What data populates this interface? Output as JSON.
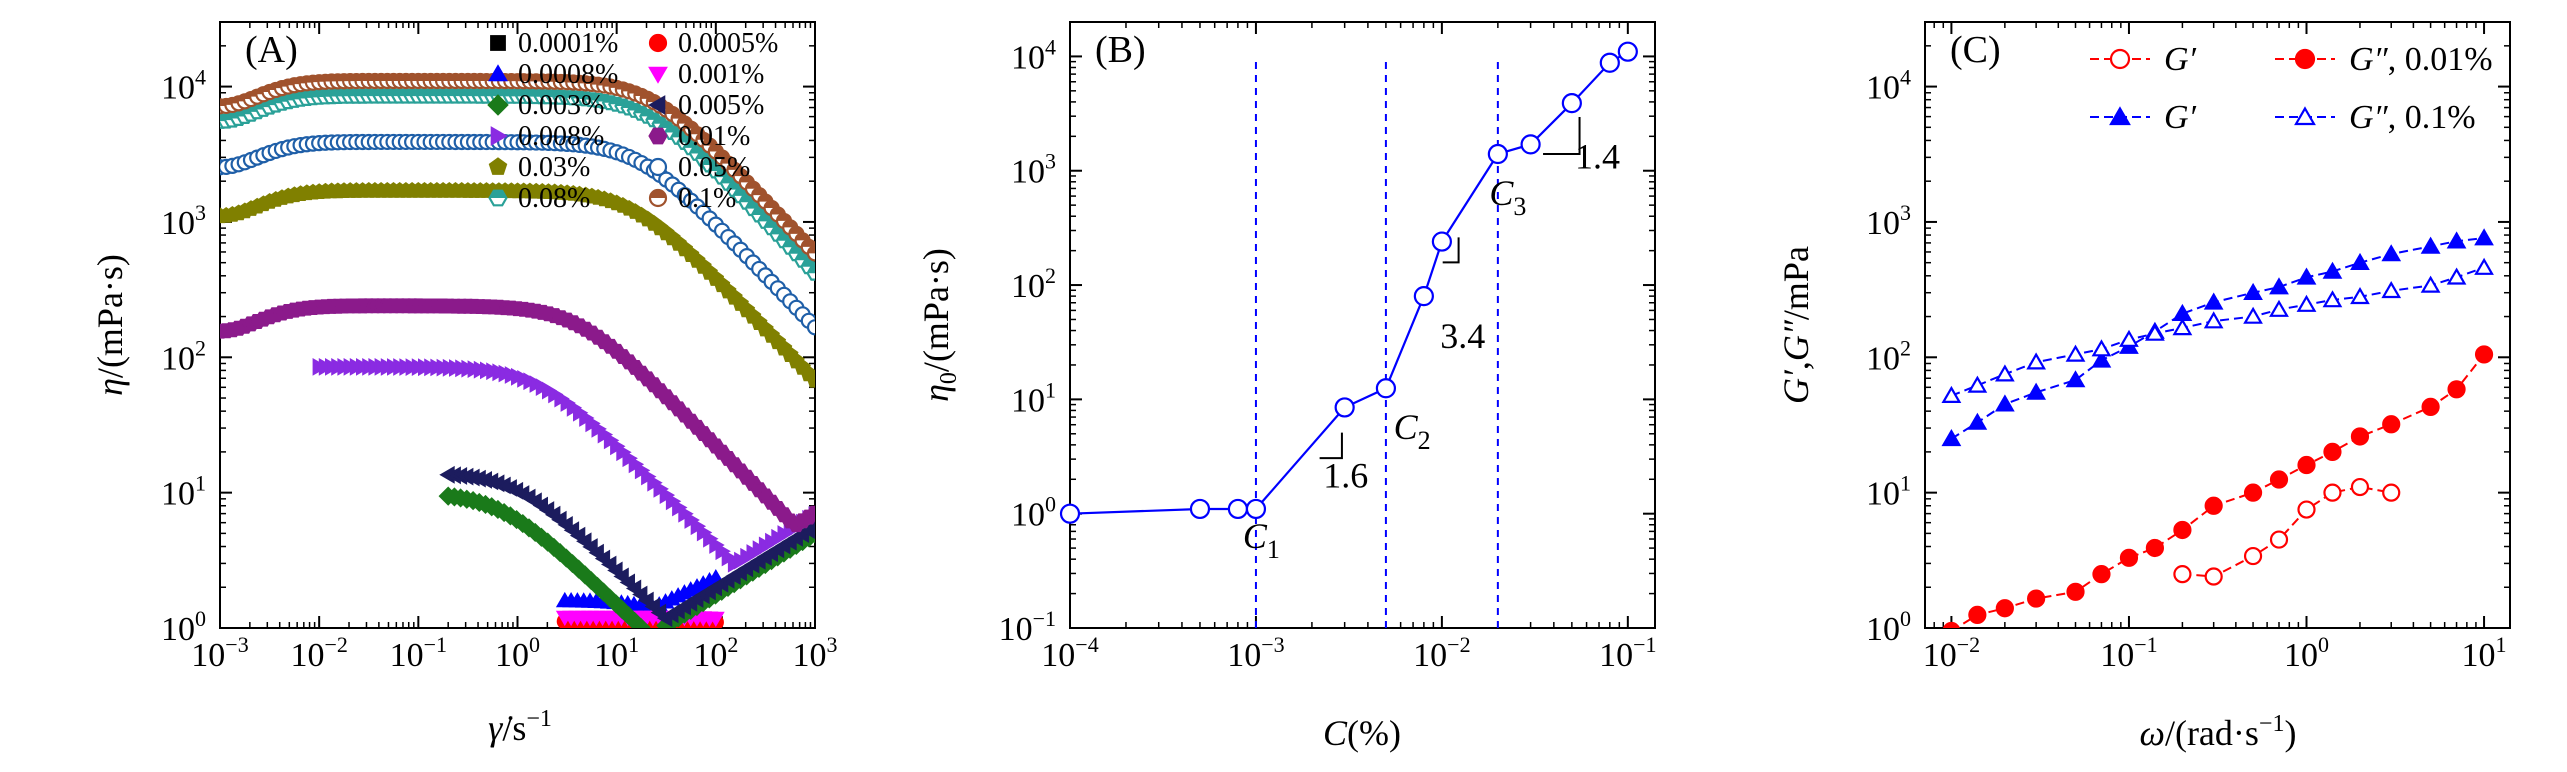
{
  "colors": {
    "black": "#000000",
    "red": "#ff0000",
    "blue": "#0000ff",
    "magenta": "#ff00ff",
    "green": "#1a7a1a",
    "navy": "#1c1c5e",
    "violet": "#8a2be2",
    "purple": "#8b1a8b",
    "olive": "#808000",
    "steelblue": "#1f5fa8",
    "teal": "#2aa198",
    "brown": "#a0522d",
    "line_blue": "#0000ff",
    "dash_blue": "#0000ff"
  },
  "chart_data": [
    {
      "panel": "A",
      "label": "(A)",
      "type": "scatter",
      "xscale": "log",
      "yscale": "log",
      "xlim": [
        0.001,
        1000
      ],
      "ylim": [
        1,
        30000
      ],
      "xlabel": "γ̇/s⁻¹",
      "ylabel": "η/(mPa·s)",
      "xticks": [
        {
          "base": "10",
          "exp": "−3"
        },
        {
          "base": "10",
          "exp": "−2"
        },
        {
          "base": "10",
          "exp": "−1"
        },
        {
          "base": "10",
          "exp": "0"
        },
        {
          "base": "10",
          "exp": "1"
        },
        {
          "base": "10",
          "exp": "2"
        },
        {
          "base": "10",
          "exp": "3"
        }
      ],
      "yticks": [
        {
          "base": "10",
          "exp": "0"
        },
        {
          "base": "10",
          "exp": "1"
        },
        {
          "base": "10",
          "exp": "2"
        },
        {
          "base": "10",
          "exp": "3"
        },
        {
          "base": "10",
          "exp": "4"
        }
      ],
      "legend_position": "top-right",
      "series": [
        {
          "name": "0.0001%",
          "marker": "square",
          "color": "black",
          "filled": true,
          "curve": {
            "eta0": 1.1,
            "lam": 0.001,
            "n": 1.0,
            "x0": 10,
            "x1": 100,
            "up": null
          }
        },
        {
          "name": "0.0005%",
          "marker": "circle",
          "color": "red",
          "filled": true,
          "curve": {
            "eta0": 1.12,
            "lam": 0.001,
            "n": 1.0,
            "x0": 3,
            "x1": 100,
            "up": null
          }
        },
        {
          "name": "0.0008%",
          "marker": "triangle-up",
          "color": "blue",
          "filled": true,
          "curve": {
            "eta0": 1.6,
            "lam": 0.02,
            "n": 0.85,
            "x0": 3,
            "x1": 100,
            "up": [
              120,
              2.5,
              0.35
            ]
          }
        },
        {
          "name": "0.001%",
          "marker": "triangle-down",
          "color": "magenta",
          "filled": true,
          "curve": {
            "eta0": 1.2,
            "lam": 0.001,
            "n": 1.0,
            "x0": 3,
            "x1": 100,
            "up": null
          }
        },
        {
          "name": "0.003%",
          "marker": "diamond",
          "color": "green",
          "filled": true,
          "curve": {
            "eta0": 10,
            "lam": 1.5,
            "n": 0.7,
            "x0": 0.2,
            "x1": 1000,
            "up": [
              200,
              2.4,
              0.45
            ]
          }
        },
        {
          "name": "0.005%",
          "marker": "triangle-left",
          "color": "navy",
          "filled": true,
          "curve": {
            "eta0": 14,
            "lam": 1.0,
            "n": 0.72,
            "x0": 0.2,
            "x1": 1000,
            "up": [
              180,
              2.6,
              0.45
            ]
          }
        },
        {
          "name": "0.008%",
          "marker": "triangle-right",
          "color": "violet",
          "filled": true,
          "curve": {
            "eta0": 85,
            "lam": 0.6,
            "n": 0.74,
            "x0": 0.01,
            "x1": 1000,
            "up": [
              160,
              3.0,
              0.45
            ]
          }
        },
        {
          "name": "0.01%",
          "marker": "hexagon",
          "color": "purple",
          "filled": true,
          "curve": {
            "eta0": 240,
            "lam": 0.25,
            "n": 0.74,
            "x0": 0.001,
            "x1": 1000,
            "up": [
              150,
              3.0,
              0.45
            ]
          }
        },
        {
          "name": "0.03%",
          "marker": "pentagon",
          "color": "olive",
          "filled": true,
          "curve": {
            "eta0": 1700,
            "lam": 0.07,
            "n": 0.76,
            "x0": 0.001,
            "x1": 1000,
            "up": [
              250,
              6.0,
              0.5
            ]
          }
        },
        {
          "name": "0.05%",
          "marker": "circle",
          "color": "steelblue",
          "filled": false,
          "curve": {
            "eta0": 3900,
            "lam": 0.06,
            "n": 0.77,
            "x0": 0.001,
            "x1": 1000,
            "up": [
              300,
              8.0,
              0.5
            ]
          }
        },
        {
          "name": "0.08%",
          "marker": "hexagon-half",
          "color": "teal",
          "filled": false,
          "curve": {
            "eta0": 8500,
            "lam": 0.05,
            "n": 0.77,
            "x0": 0.001,
            "x1": 1000,
            "up": [
              350,
              10.0,
              0.5
            ]
          }
        },
        {
          "name": "0.1%",
          "marker": "circle-half",
          "color": "brown",
          "filled": false,
          "curve": {
            "eta0": 11000,
            "lam": 0.045,
            "n": 0.77,
            "x0": 0.001,
            "x1": 1000,
            "up": [
              380,
              11.0,
              0.5
            ]
          }
        }
      ]
    },
    {
      "panel": "B",
      "label": "(B)",
      "type": "line",
      "xscale": "log",
      "yscale": "log",
      "xlim": [
        0.0001,
        0.14
      ],
      "ylim": [
        0.1,
        20000
      ],
      "xlabel": "C(%)",
      "ylabel": "η0/(mPa·s)",
      "xticks": [
        {
          "base": "10",
          "exp": "−4"
        },
        {
          "base": "10",
          "exp": "−3"
        },
        {
          "base": "10",
          "exp": "−2"
        },
        {
          "base": "10",
          "exp": "−1"
        }
      ],
      "yticks": [
        {
          "base": "10",
          "exp": "−1"
        },
        {
          "base": "10",
          "exp": "0"
        },
        {
          "base": "10",
          "exp": "1"
        },
        {
          "base": "10",
          "exp": "2"
        },
        {
          "base": "10",
          "exp": "3"
        },
        {
          "base": "10",
          "exp": "4"
        }
      ],
      "series": [
        {
          "name": "",
          "marker": "circle",
          "color": "blue",
          "filled": false,
          "x": [
            0.0001,
            0.0005,
            0.0008,
            0.001,
            0.003,
            0.005,
            0.008,
            0.01,
            0.02,
            0.03,
            0.05,
            0.08,
            0.1
          ],
          "y": [
            1.0,
            1.1,
            1.1,
            1.1,
            8.5,
            12.5,
            80,
            240,
            1400,
            1700,
            3900,
            8800,
            11000
          ]
        }
      ],
      "vlines": [
        0.001,
        0.005,
        0.02
      ],
      "annotations": [
        {
          "text": "C",
          "sub": "1",
          "x": 0.00085,
          "y": 0.5
        },
        {
          "text": "C",
          "sub": "2",
          "x": 0.0055,
          "y": 4.5
        },
        {
          "text": "C",
          "sub": "3",
          "x": 0.018,
          "y": 500
        },
        {
          "text": "1.6",
          "x": 0.0023,
          "y": 1.7
        },
        {
          "text": "3.4",
          "x": 0.0098,
          "y": 28
        },
        {
          "text": "1.4",
          "x": 0.052,
          "y": 1050
        }
      ],
      "slopes": [
        {
          "x1": 0.0022,
          "x2": 0.0029,
          "slope": 1.6
        },
        {
          "x1": 0.0101,
          "x2": 0.0123,
          "slope": 3.4
        },
        {
          "x1": 0.035,
          "x2": 0.055,
          "slope": 1.4
        }
      ]
    },
    {
      "panel": "C",
      "label": "(C)",
      "type": "line",
      "xscale": "log",
      "yscale": "log",
      "xlim": [
        0.0071,
        14
      ],
      "ylim": [
        1,
        30000
      ],
      "xlabel": "ω/(rad·s⁻¹)",
      "ylabel": "G′,G″/mPa",
      "xticks": [
        {
          "base": "10",
          "exp": "−2"
        },
        {
          "base": "10",
          "exp": "−1"
        },
        {
          "base": "10",
          "exp": "0"
        },
        {
          "base": "10",
          "exp": "1"
        }
      ],
      "yticks": [
        {
          "base": "10",
          "exp": "0"
        },
        {
          "base": "10",
          "exp": "1"
        },
        {
          "base": "10",
          "exp": "2"
        },
        {
          "base": "10",
          "exp": "3"
        },
        {
          "base": "10",
          "exp": "4"
        }
      ],
      "legend_position": "top-right",
      "legend": [
        {
          "label": "G′",
          "series": 0
        },
        {
          "label": "G″, 0.01%",
          "series": 1
        },
        {
          "label": "G′",
          "series": 2
        },
        {
          "label": "G″, 0.1%",
          "series": 3
        }
      ],
      "series": [
        {
          "name": "G′",
          "group": "0.01%",
          "marker": "circle",
          "color": "red",
          "filled": false,
          "x": [
            0.2,
            0.3,
            0.5,
            0.7,
            1.0,
            1.4,
            2.0,
            3.0
          ],
          "y": [
            2.5,
            2.4,
            3.4,
            4.5,
            7.5,
            10.0,
            11.0,
            10.0
          ]
        },
        {
          "name": "G″",
          "group": "0.01%",
          "marker": "circle",
          "color": "red",
          "filled": true,
          "x": [
            0.01,
            0.014,
            0.02,
            0.03,
            0.05,
            0.07,
            0.1,
            0.14,
            0.2,
            0.3,
            0.5,
            0.7,
            1.0,
            1.4,
            2.0,
            3.0,
            5.0,
            7.0,
            10.0
          ],
          "y": [
            0.95,
            1.25,
            1.4,
            1.65,
            1.85,
            2.5,
            3.3,
            3.9,
            5.3,
            8.0,
            10.0,
            12.5,
            16.0,
            20.0,
            26.0,
            32.0,
            43.0,
            58.0,
            105.0
          ]
        },
        {
          "name": "G′",
          "group": "0.1%",
          "marker": "triangle-up",
          "color": "blue",
          "filled": true,
          "x": [
            0.01,
            0.014,
            0.02,
            0.03,
            0.05,
            0.07,
            0.1,
            0.14,
            0.2,
            0.3,
            0.5,
            0.7,
            1.0,
            1.4,
            2.0,
            3.0,
            5.0,
            7.0,
            10.0
          ],
          "y": [
            25,
            33,
            45,
            55,
            68,
            95,
            120,
            155,
            210,
            255,
            300,
            330,
            390,
            430,
            500,
            580,
            660,
            720,
            760
          ]
        },
        {
          "name": "G″",
          "group": "0.1%",
          "marker": "triangle-up",
          "color": "blue",
          "filled": false,
          "x": [
            0.01,
            0.014,
            0.02,
            0.03,
            0.05,
            0.07,
            0.1,
            0.14,
            0.2,
            0.3,
            0.5,
            0.7,
            1.0,
            1.4,
            2.0,
            3.0,
            5.0,
            7.0,
            10.0
          ],
          "y": [
            52,
            62,
            75,
            92,
            105,
            115,
            135,
            150,
            165,
            185,
            200,
            225,
            245,
            265,
            280,
            310,
            340,
            390,
            460
          ]
        }
      ]
    }
  ]
}
